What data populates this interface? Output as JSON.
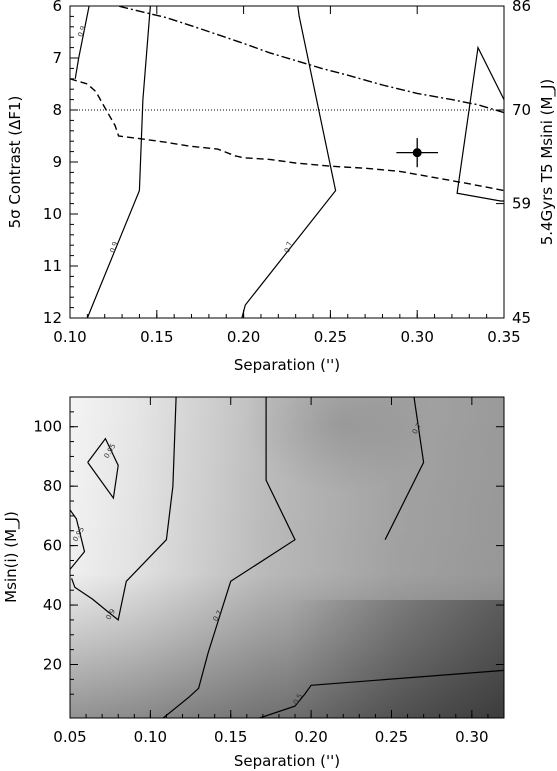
{
  "chart_data": [
    {
      "type": "line",
      "xlabel": "Separation ('')",
      "ylabel": "5σ Contrast (ΔF1)",
      "y2label": "5.4Gyrs T5 Msini (M_J)",
      "xlim": [
        0.1,
        0.35
      ],
      "ylim": [
        12,
        6
      ],
      "y2lim": [
        45,
        86
      ],
      "xticks": [
        "0.10",
        "0.15",
        "0.20",
        "0.25",
        "0.30",
        "0.35"
      ],
      "yticks": [
        "6",
        "7",
        "8",
        "9",
        "10",
        "11",
        "12"
      ],
      "y2ticks": [
        "86",
        "70",
        "59",
        "45"
      ],
      "y2tick_positions": [
        6,
        8,
        9.8,
        12
      ],
      "series": [
        {
          "style": "dash-dot",
          "x": [
            0.1,
            0.107,
            0.114,
            0.13,
            0.14,
            0.155,
            0.17,
            0.185,
            0.2,
            0.215,
            0.23,
            0.245,
            0.26,
            0.28,
            0.3,
            0.32,
            0.335,
            0.35
          ],
          "y": [
            5.75,
            5.8,
            5.87,
            6.02,
            6.1,
            6.22,
            6.38,
            6.55,
            6.72,
            6.9,
            7.05,
            7.2,
            7.33,
            7.52,
            7.68,
            7.8,
            7.9,
            8.05
          ]
        },
        {
          "style": "dashed",
          "x": [
            0.1,
            0.11,
            0.115,
            0.12,
            0.126,
            0.128,
            0.14,
            0.155,
            0.17,
            0.185,
            0.195,
            0.2,
            0.215,
            0.23,
            0.25,
            0.27,
            0.29,
            0.31,
            0.33,
            0.35
          ],
          "y": [
            7.4,
            7.5,
            7.65,
            7.95,
            8.3,
            8.5,
            8.55,
            8.62,
            8.7,
            8.75,
            8.88,
            8.92,
            8.95,
            9.02,
            9.08,
            9.12,
            9.18,
            9.3,
            9.42,
            9.55
          ]
        },
        {
          "style": "dotted",
          "x": [
            0.1,
            0.35
          ],
          "y": [
            8.0,
            8.0
          ]
        }
      ],
      "contours": [
        {
          "label": "0.9",
          "x": [
            0.103,
            0.105,
            0.111,
            0.113
          ],
          "y": [
            7.4,
            7.0,
            6.0,
            5.7
          ]
        },
        {
          "label": "0.9",
          "x": [
            0.11,
            0.113,
            0.14,
            0.142,
            0.147
          ],
          "y": [
            12.0,
            11.75,
            9.55,
            7.8,
            5.7
          ]
        },
        {
          "label": "0.7",
          "x": [
            0.199,
            0.201,
            0.253,
            0.232,
            0.23
          ],
          "y": [
            12.0,
            11.75,
            9.55,
            6.2,
            5.7
          ]
        },
        {
          "label": "",
          "x": [
            0.35,
            0.335,
            0.323,
            0.348,
            0.35
          ],
          "y": [
            7.8,
            6.8,
            9.6,
            9.75,
            9.75
          ]
        }
      ],
      "point": {
        "x": 0.3,
        "y": 8.82,
        "xerr": 0.012,
        "yerr": 0.28
      }
    },
    {
      "type": "heatmap",
      "xlabel": "Separation ('')",
      "ylabel": "Msin(i) (M_J)",
      "xlim": [
        0.05,
        0.32
      ],
      "ylim": [
        2,
        110
      ],
      "xticks": [
        "0.05",
        "0.10",
        "0.15",
        "0.20",
        "0.25",
        "0.30"
      ],
      "yticks": [
        "20",
        "40",
        "60",
        "80",
        "100"
      ],
      "contours": [
        {
          "label": "0.95",
          "x": [
            0.061,
            0.072,
            0.08,
            0.077,
            0.061
          ],
          "y": [
            88,
            96,
            87,
            76,
            88
          ]
        },
        {
          "label": "0.95",
          "x": [
            0.05,
            0.054,
            0.059,
            0.05
          ],
          "y": [
            72,
            69,
            58,
            52
          ]
        },
        {
          "label": "0.9",
          "x": [
            0.051,
            0.053,
            0.064,
            0.073,
            0.08,
            0.085,
            0.11,
            0.114,
            0.116
          ],
          "y": [
            49,
            46,
            42,
            38,
            35,
            48,
            62,
            80,
            110
          ]
        },
        {
          "label": "0.7",
          "x": [
            0.108,
            0.124,
            0.13,
            0.136,
            0.15,
            0.19,
            0.172,
            0.172
          ],
          "y": [
            2,
            9,
            12,
            24,
            48,
            62,
            82,
            110
          ]
        },
        {
          "label": "0.7",
          "x": [
            0.246,
            0.27,
            0.264,
            0.264
          ],
          "y": [
            62,
            88,
            110,
            110
          ]
        },
        {
          "label": "0.5",
          "x": [
            0.168,
            0.19,
            0.196,
            0.2,
            0.32
          ],
          "y": [
            2,
            6,
            10,
            13,
            18
          ]
        }
      ]
    }
  ]
}
